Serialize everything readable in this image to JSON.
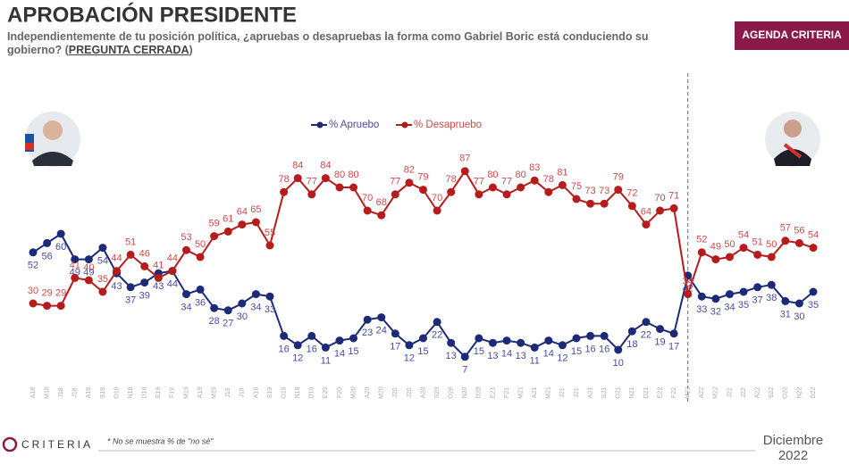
{
  "header": {
    "title": "APROBACIÓN PRESIDENTE",
    "subtitle": "Independientemente de tu posición política, ¿apruebas o desapruebas la forma como Gabriel Boric está conduciendo su gobierno? (",
    "subtitle_emphasis": "PREGUNTA CERRADA",
    "subtitle_end": ")",
    "badge": "AGENDA CRITERIA"
  },
  "footer": {
    "logo": "CRITERIA",
    "note": "* No se muestra % de \"no sé\"",
    "date": "Diciembre 2022"
  },
  "chart_data": {
    "type": "line",
    "categories": [
      "A18",
      "M18",
      "J18",
      "J18",
      "A18",
      "S18",
      "O18",
      "N18",
      "D18",
      "E19",
      "F19",
      "M19",
      "A19",
      "M19",
      "J19",
      "J19",
      "A19",
      "S19",
      "O19",
      "N19",
      "D19",
      "E20",
      "F20",
      "M20",
      "A20",
      "M20",
      "J20",
      "J20",
      "A20",
      "S20",
      "O20",
      "N20",
      "D20",
      "E21",
      "F21",
      "M21",
      "A21",
      "M21",
      "J21",
      "J21",
      "A21",
      "S21",
      "O21",
      "N21",
      "D21",
      "E22",
      "F22",
      "M22",
      "A22",
      "M22",
      "J22",
      "J22",
      "A22",
      "S22",
      "O22",
      "N22",
      "D22"
    ],
    "series": [
      {
        "name": "% Apruebo",
        "color": "#1c2a78",
        "label_color": "#4a4aa6",
        "values": [
          52,
          56,
          60,
          49,
          49,
          54,
          43,
          37,
          39,
          43,
          44,
          34,
          36,
          28,
          27,
          30,
          34,
          33,
          16,
          12,
          16,
          11,
          14,
          15,
          23,
          24,
          17,
          12,
          15,
          22,
          13,
          7,
          15,
          13,
          14,
          13,
          11,
          14,
          12,
          15,
          16,
          16,
          10,
          18,
          22,
          19,
          17,
          42,
          33,
          32,
          34,
          35,
          37,
          38,
          31,
          30,
          35
        ]
      },
      {
        "name": "% Desapruebo",
        "color": "#b71c1c",
        "label_color": "#d24a4a",
        "values": [
          30,
          29,
          29,
          41,
          40,
          35,
          44,
          51,
          46,
          41,
          44,
          53,
          50,
          59,
          61,
          64,
          65,
          55,
          78,
          84,
          77,
          84,
          80,
          80,
          70,
          68,
          77,
          82,
          79,
          70,
          78,
          87,
          77,
          80,
          77,
          80,
          83,
          78,
          81,
          75,
          73,
          73,
          79,
          72,
          64,
          70,
          71,
          34,
          52,
          49,
          50,
          54,
          51,
          50,
          57,
          56,
          54
        ]
      }
    ],
    "divider_after": "F22"
  }
}
